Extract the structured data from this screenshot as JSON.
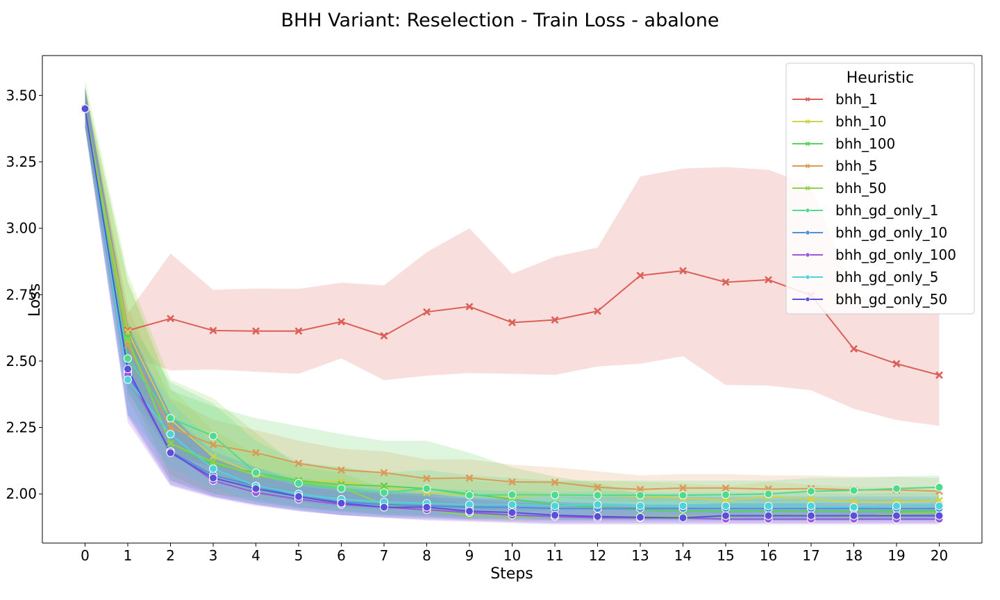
{
  "chart_data": {
    "type": "line",
    "title": "BHH Variant: Reselection - Train Loss - abalone",
    "xlabel": "Steps",
    "ylabel": "Loss",
    "xlim": [
      -1,
      21
    ],
    "ylim": [
      1.815,
      3.65
    ],
    "x_ticks": [
      0,
      1,
      2,
      3,
      4,
      5,
      6,
      7,
      8,
      9,
      10,
      11,
      12,
      13,
      14,
      15,
      16,
      17,
      18,
      19,
      20
    ],
    "y_ticks": [
      2.0,
      2.25,
      2.5,
      2.75,
      3.0,
      3.25,
      3.5
    ],
    "y_tick_labels": [
      "2.00",
      "2.25",
      "2.50",
      "2.75",
      "3.00",
      "3.25",
      "3.50"
    ],
    "legend": {
      "title": "Heuristic",
      "placement": "top-right"
    },
    "x": [
      0,
      1,
      2,
      3,
      4,
      5,
      6,
      7,
      8,
      9,
      10,
      11,
      12,
      13,
      14,
      15,
      16,
      17,
      18,
      19,
      20
    ],
    "series": [
      {
        "name": "bhh_1",
        "color": "#db5f57",
        "marker": "x",
        "values": [
          3.45,
          2.615,
          2.66,
          2.615,
          2.613,
          2.613,
          2.648,
          2.595,
          2.685,
          2.705,
          2.645,
          2.655,
          2.688,
          2.822,
          2.84,
          2.797,
          2.806,
          2.748,
          2.546,
          2.49,
          2.447
        ],
        "lower": [
          3.38,
          2.52,
          2.465,
          2.468,
          2.46,
          2.452,
          2.51,
          2.428,
          2.445,
          2.455,
          2.452,
          2.448,
          2.48,
          2.49,
          2.518,
          2.41,
          2.408,
          2.39,
          2.32,
          2.278,
          2.256
        ],
        "upper": [
          3.52,
          2.68,
          2.905,
          2.768,
          2.773,
          2.772,
          2.795,
          2.785,
          2.91,
          3.0,
          2.828,
          2.893,
          2.927,
          3.195,
          3.225,
          3.23,
          3.22,
          3.16,
          2.75,
          2.7,
          2.68
        ]
      },
      {
        "name": "bhh_10",
        "color": "#d3d04a",
        "marker": "x",
        "values": [
          3.45,
          2.61,
          2.28,
          2.14,
          2.075,
          2.05,
          2.045,
          2.025,
          2.005,
          1.995,
          1.99,
          1.995,
          1.995,
          1.99,
          1.985,
          1.975,
          1.99,
          1.98,
          1.97,
          1.97,
          1.975
        ],
        "lower": [
          3.38,
          2.45,
          2.17,
          2.06,
          2.01,
          1.99,
          1.985,
          1.97,
          1.955,
          1.945,
          1.94,
          1.94,
          1.94,
          1.935,
          1.93,
          1.925,
          1.935,
          1.93,
          1.92,
          1.92,
          1.92
        ],
        "upper": [
          3.53,
          2.8,
          2.4,
          2.24,
          2.15,
          2.11,
          2.1,
          2.08,
          2.06,
          2.05,
          2.04,
          2.045,
          2.05,
          2.045,
          2.04,
          2.03,
          2.045,
          2.035,
          2.025,
          2.025,
          2.03
        ]
      },
      {
        "name": "bhh_100",
        "color": "#57d357",
        "marker": "x",
        "values": [
          3.45,
          2.59,
          2.19,
          2.11,
          2.08,
          2.05,
          2.035,
          2.03,
          2.02,
          2.0,
          1.98,
          1.96,
          1.95,
          1.94,
          1.935,
          1.935,
          1.935,
          1.935,
          1.935,
          1.935,
          1.935
        ],
        "lower": [
          3.38,
          2.4,
          2.07,
          2.0,
          1.97,
          1.95,
          1.935,
          1.925,
          1.92,
          1.915,
          1.91,
          1.905,
          1.905,
          1.905,
          1.905,
          1.905,
          1.905,
          1.905,
          1.905,
          1.905,
          1.905
        ],
        "upper": [
          3.53,
          2.8,
          2.39,
          2.33,
          2.285,
          2.255,
          2.225,
          2.2,
          2.2,
          2.155,
          2.1,
          2.065,
          2.04,
          2.0,
          1.99,
          1.985,
          1.98,
          1.98,
          1.98,
          1.98,
          1.98
        ]
      },
      {
        "name": "bhh_5",
        "color": "#dc9a54",
        "marker": "x",
        "values": [
          3.45,
          2.56,
          2.25,
          2.185,
          2.155,
          2.115,
          2.09,
          2.08,
          2.058,
          2.06,
          2.045,
          2.044,
          2.025,
          2.017,
          2.022,
          2.022,
          2.018,
          2.02,
          2.015,
          2.015,
          2.01
        ],
        "lower": [
          3.38,
          2.42,
          2.15,
          2.1,
          2.08,
          2.04,
          2.02,
          2.01,
          1.99,
          2.0,
          1.99,
          1.99,
          1.975,
          1.97,
          1.975,
          1.975,
          1.97,
          1.975,
          1.97,
          1.97,
          1.965
        ],
        "upper": [
          3.53,
          2.7,
          2.36,
          2.28,
          2.24,
          2.2,
          2.17,
          2.16,
          2.13,
          2.13,
          2.11,
          2.1,
          2.085,
          2.07,
          2.075,
          2.075,
          2.07,
          2.07,
          2.065,
          2.065,
          2.06
        ]
      },
      {
        "name": "bhh_50",
        "color": "#8dd34a",
        "marker": "x",
        "values": [
          3.45,
          2.58,
          2.19,
          2.12,
          2.07,
          2.045,
          2.025,
          1.96,
          1.94,
          1.92,
          1.915,
          1.915,
          1.915,
          1.915,
          1.915,
          1.915,
          1.92,
          1.92,
          1.915,
          1.925,
          1.93
        ],
        "lower": [
          3.38,
          2.36,
          2.05,
          2.0,
          1.98,
          1.95,
          1.935,
          1.92,
          1.915,
          1.905,
          1.9,
          1.9,
          1.9,
          1.9,
          1.9,
          1.9,
          1.9,
          1.9,
          1.9,
          1.905,
          1.905
        ],
        "upper": [
          3.56,
          2.83,
          2.43,
          2.36,
          2.23,
          2.1,
          2.08,
          2.02,
          1.99,
          1.96,
          1.945,
          1.94,
          1.94,
          1.94,
          1.94,
          1.94,
          1.94,
          1.94,
          1.94,
          1.945,
          1.95
        ]
      },
      {
        "name": "bhh_gd_only_1",
        "color": "#4fdb8e",
        "marker": "o",
        "values": [
          3.45,
          2.51,
          2.285,
          2.218,
          2.08,
          2.04,
          2.02,
          2.005,
          2.02,
          1.995,
          1.997,
          1.996,
          1.995,
          1.995,
          1.995,
          1.997,
          2.0,
          2.01,
          2.013,
          2.02,
          2.025
        ],
        "lower": [
          3.38,
          2.38,
          2.15,
          2.1,
          2.0,
          1.97,
          1.95,
          1.94,
          1.95,
          1.935,
          1.935,
          1.94,
          1.94,
          1.94,
          1.94,
          1.945,
          1.95,
          1.96,
          1.965,
          1.97,
          1.97
        ],
        "upper": [
          3.53,
          2.65,
          2.42,
          2.34,
          2.2,
          2.12,
          2.1,
          2.08,
          2.09,
          2.07,
          2.06,
          2.05,
          2.05,
          2.05,
          2.05,
          2.05,
          2.05,
          2.06,
          2.06,
          2.065,
          2.07
        ]
      },
      {
        "name": "bhh_gd_only_10",
        "color": "#4a90db",
        "marker": "o",
        "values": [
          3.45,
          2.46,
          2.16,
          2.07,
          2.03,
          1.99,
          1.97,
          1.96,
          1.955,
          1.95,
          1.95,
          1.945,
          1.945,
          1.945,
          1.945,
          1.945,
          1.945,
          1.945,
          1.945,
          1.945,
          1.945
        ],
        "lower": [
          3.38,
          2.3,
          2.05,
          1.99,
          1.96,
          1.935,
          1.92,
          1.915,
          1.91,
          1.905,
          1.905,
          1.9,
          1.9,
          1.9,
          1.9,
          1.9,
          1.9,
          1.9,
          1.9,
          1.9,
          1.9
        ],
        "upper": [
          3.53,
          2.62,
          2.3,
          2.16,
          2.1,
          2.05,
          2.03,
          2.015,
          2.005,
          2.0,
          1.995,
          1.99,
          1.99,
          1.99,
          1.99,
          1.99,
          1.99,
          1.99,
          1.99,
          1.99,
          1.99
        ]
      },
      {
        "name": "bhh_gd_only_100",
        "color": "#9a57db",
        "marker": "o",
        "values": [
          3.45,
          2.45,
          2.16,
          2.05,
          2.005,
          1.98,
          1.96,
          1.95,
          1.94,
          1.93,
          1.92,
          1.915,
          1.91,
          1.91,
          1.91,
          1.905,
          1.905,
          1.905,
          1.905,
          1.905,
          1.905
        ],
        "lower": [
          3.38,
          2.27,
          2.03,
          1.985,
          1.955,
          1.935,
          1.92,
          1.91,
          1.9,
          1.895,
          1.89,
          1.885,
          1.885,
          1.885,
          1.885,
          1.885,
          1.885,
          1.885,
          1.885,
          1.885,
          1.885
        ],
        "upper": [
          3.53,
          2.62,
          2.3,
          2.13,
          2.07,
          2.03,
          2.01,
          2.0,
          1.99,
          1.98,
          1.97,
          1.96,
          1.955,
          1.95,
          1.95,
          1.945,
          1.945,
          1.945,
          1.945,
          1.945,
          1.945
        ]
      },
      {
        "name": "bhh_gd_only_5",
        "color": "#4fd3db",
        "marker": "o",
        "values": [
          3.45,
          2.43,
          2.225,
          2.095,
          2.03,
          2.0,
          1.98,
          1.97,
          1.965,
          1.96,
          1.96,
          1.955,
          1.96,
          1.955,
          1.955,
          1.955,
          1.955,
          1.955,
          1.95,
          1.955,
          1.955
        ],
        "lower": [
          3.38,
          2.3,
          2.1,
          2.02,
          1.97,
          1.945,
          1.93,
          1.92,
          1.915,
          1.91,
          1.91,
          1.905,
          1.91,
          1.905,
          1.905,
          1.905,
          1.905,
          1.905,
          1.9,
          1.905,
          1.905
        ],
        "upper": [
          3.53,
          2.58,
          2.35,
          2.19,
          2.1,
          2.06,
          2.04,
          2.03,
          2.02,
          2.015,
          2.01,
          2.005,
          2.01,
          2.005,
          2.005,
          2.005,
          2.005,
          2.005,
          2.0,
          2.005,
          2.005
        ]
      },
      {
        "name": "bhh_gd_only_50",
        "color": "#5a4fdb",
        "marker": "o",
        "values": [
          3.45,
          2.47,
          2.155,
          2.06,
          2.02,
          1.99,
          1.965,
          1.95,
          1.95,
          1.935,
          1.93,
          1.92,
          1.915,
          1.912,
          1.91,
          1.918,
          1.918,
          1.918,
          1.918,
          1.918,
          1.918
        ],
        "lower": [
          3.38,
          2.29,
          2.035,
          1.99,
          1.96,
          1.94,
          1.92,
          1.91,
          1.905,
          1.9,
          1.895,
          1.89,
          1.89,
          1.89,
          1.89,
          1.89,
          1.89,
          1.89,
          1.89,
          1.89,
          1.89
        ],
        "upper": [
          3.53,
          2.64,
          2.3,
          2.14,
          2.08,
          2.045,
          2.02,
          2.005,
          2.0,
          1.985,
          1.98,
          1.97,
          1.965,
          1.96,
          1.96,
          1.965,
          1.965,
          1.965,
          1.965,
          1.965,
          1.965
        ]
      }
    ]
  }
}
